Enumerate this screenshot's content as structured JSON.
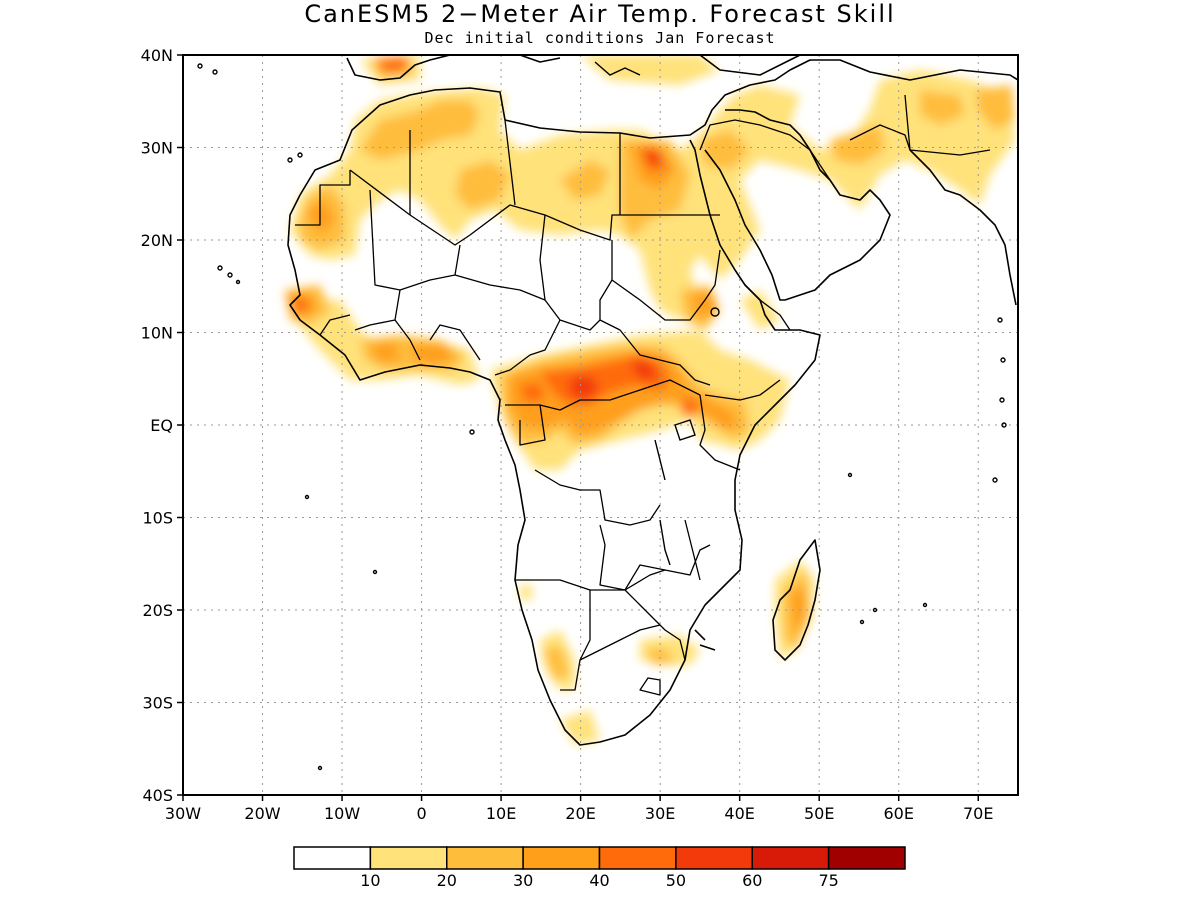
{
  "title": "CanESM5 2−Meter Air Temp. Forecast Skill",
  "subtitle": "Dec initial conditions  Jan Forecast",
  "map": {
    "extent": {
      "lon": [
        -30,
        75
      ],
      "lat": [
        -40,
        40
      ]
    },
    "lat_ticks": [
      {
        "lat": 40,
        "label": "40N"
      },
      {
        "lat": 30,
        "label": "30N"
      },
      {
        "lat": 20,
        "label": "20N"
      },
      {
        "lat": 10,
        "label": "10N"
      },
      {
        "lat": 0,
        "label": "EQ"
      },
      {
        "lat": -10,
        "label": "10S"
      },
      {
        "lat": -20,
        "label": "20S"
      },
      {
        "lat": -30,
        "label": "30S"
      },
      {
        "lat": -40,
        "label": "40S"
      }
    ],
    "lon_ticks": [
      {
        "lon": -30,
        "label": "30W"
      },
      {
        "lon": -20,
        "label": "20W"
      },
      {
        "lon": -10,
        "label": "10W"
      },
      {
        "lon": 0,
        "label": "0"
      },
      {
        "lon": 10,
        "label": "10E"
      },
      {
        "lon": 20,
        "label": "20E"
      },
      {
        "lon": 30,
        "label": "30E"
      },
      {
        "lon": 40,
        "label": "40E"
      },
      {
        "lon": 50,
        "label": "50E"
      },
      {
        "lon": 60,
        "label": "60E"
      },
      {
        "lon": 70,
        "label": "70E"
      }
    ],
    "grid": "dotted"
  },
  "colorbar": {
    "colors": [
      "#ffffff",
      "#ffe27a",
      "#ffbd3c",
      "#ff9f1a",
      "#ff6a0a",
      "#f23a0a",
      "#d81a08",
      "#a00000"
    ],
    "labels": [
      "10",
      "20",
      "30",
      "40",
      "50",
      "60",
      "75"
    ]
  }
}
